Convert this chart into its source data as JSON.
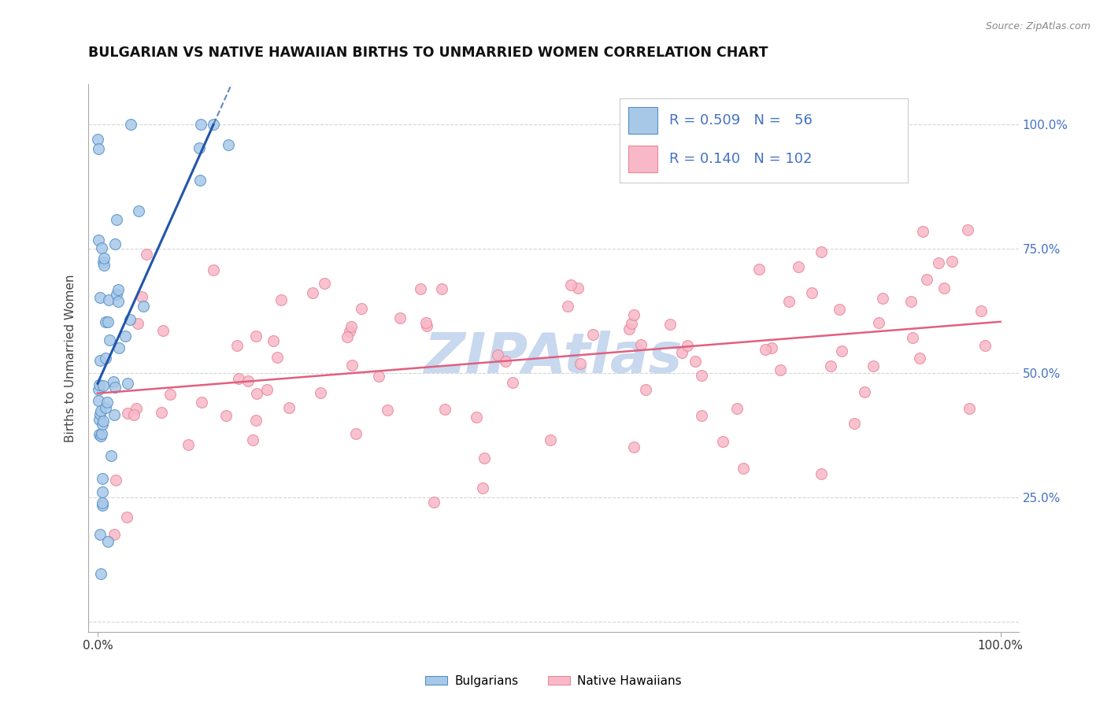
{
  "title": "BULGARIAN VS NATIVE HAWAIIAN BIRTHS TO UNMARRIED WOMEN CORRELATION CHART",
  "source": "Source: ZipAtlas.com",
  "ylabel": "Births to Unmarried Women",
  "R_blue": 0.509,
  "N_blue": 56,
  "R_pink": 0.14,
  "N_pink": 102,
  "blue_scatter_fill": "#a8c8e8",
  "blue_scatter_edge": "#5590c8",
  "pink_scatter_fill": "#f8b8c8",
  "pink_scatter_edge": "#e88898",
  "blue_line_color": "#2255aa",
  "pink_line_color": "#e06080",
  "ytick_color": "#4472c4",
  "watermark_color": "#c8d8ee",
  "legend_label_blue": "Bulgarians",
  "legend_label_pink": "Native Hawaiians",
  "blue_line_intercept": 42.0,
  "blue_line_slope": 550.0,
  "pink_line_intercept": 44.0,
  "pink_line_slope": 0.18
}
